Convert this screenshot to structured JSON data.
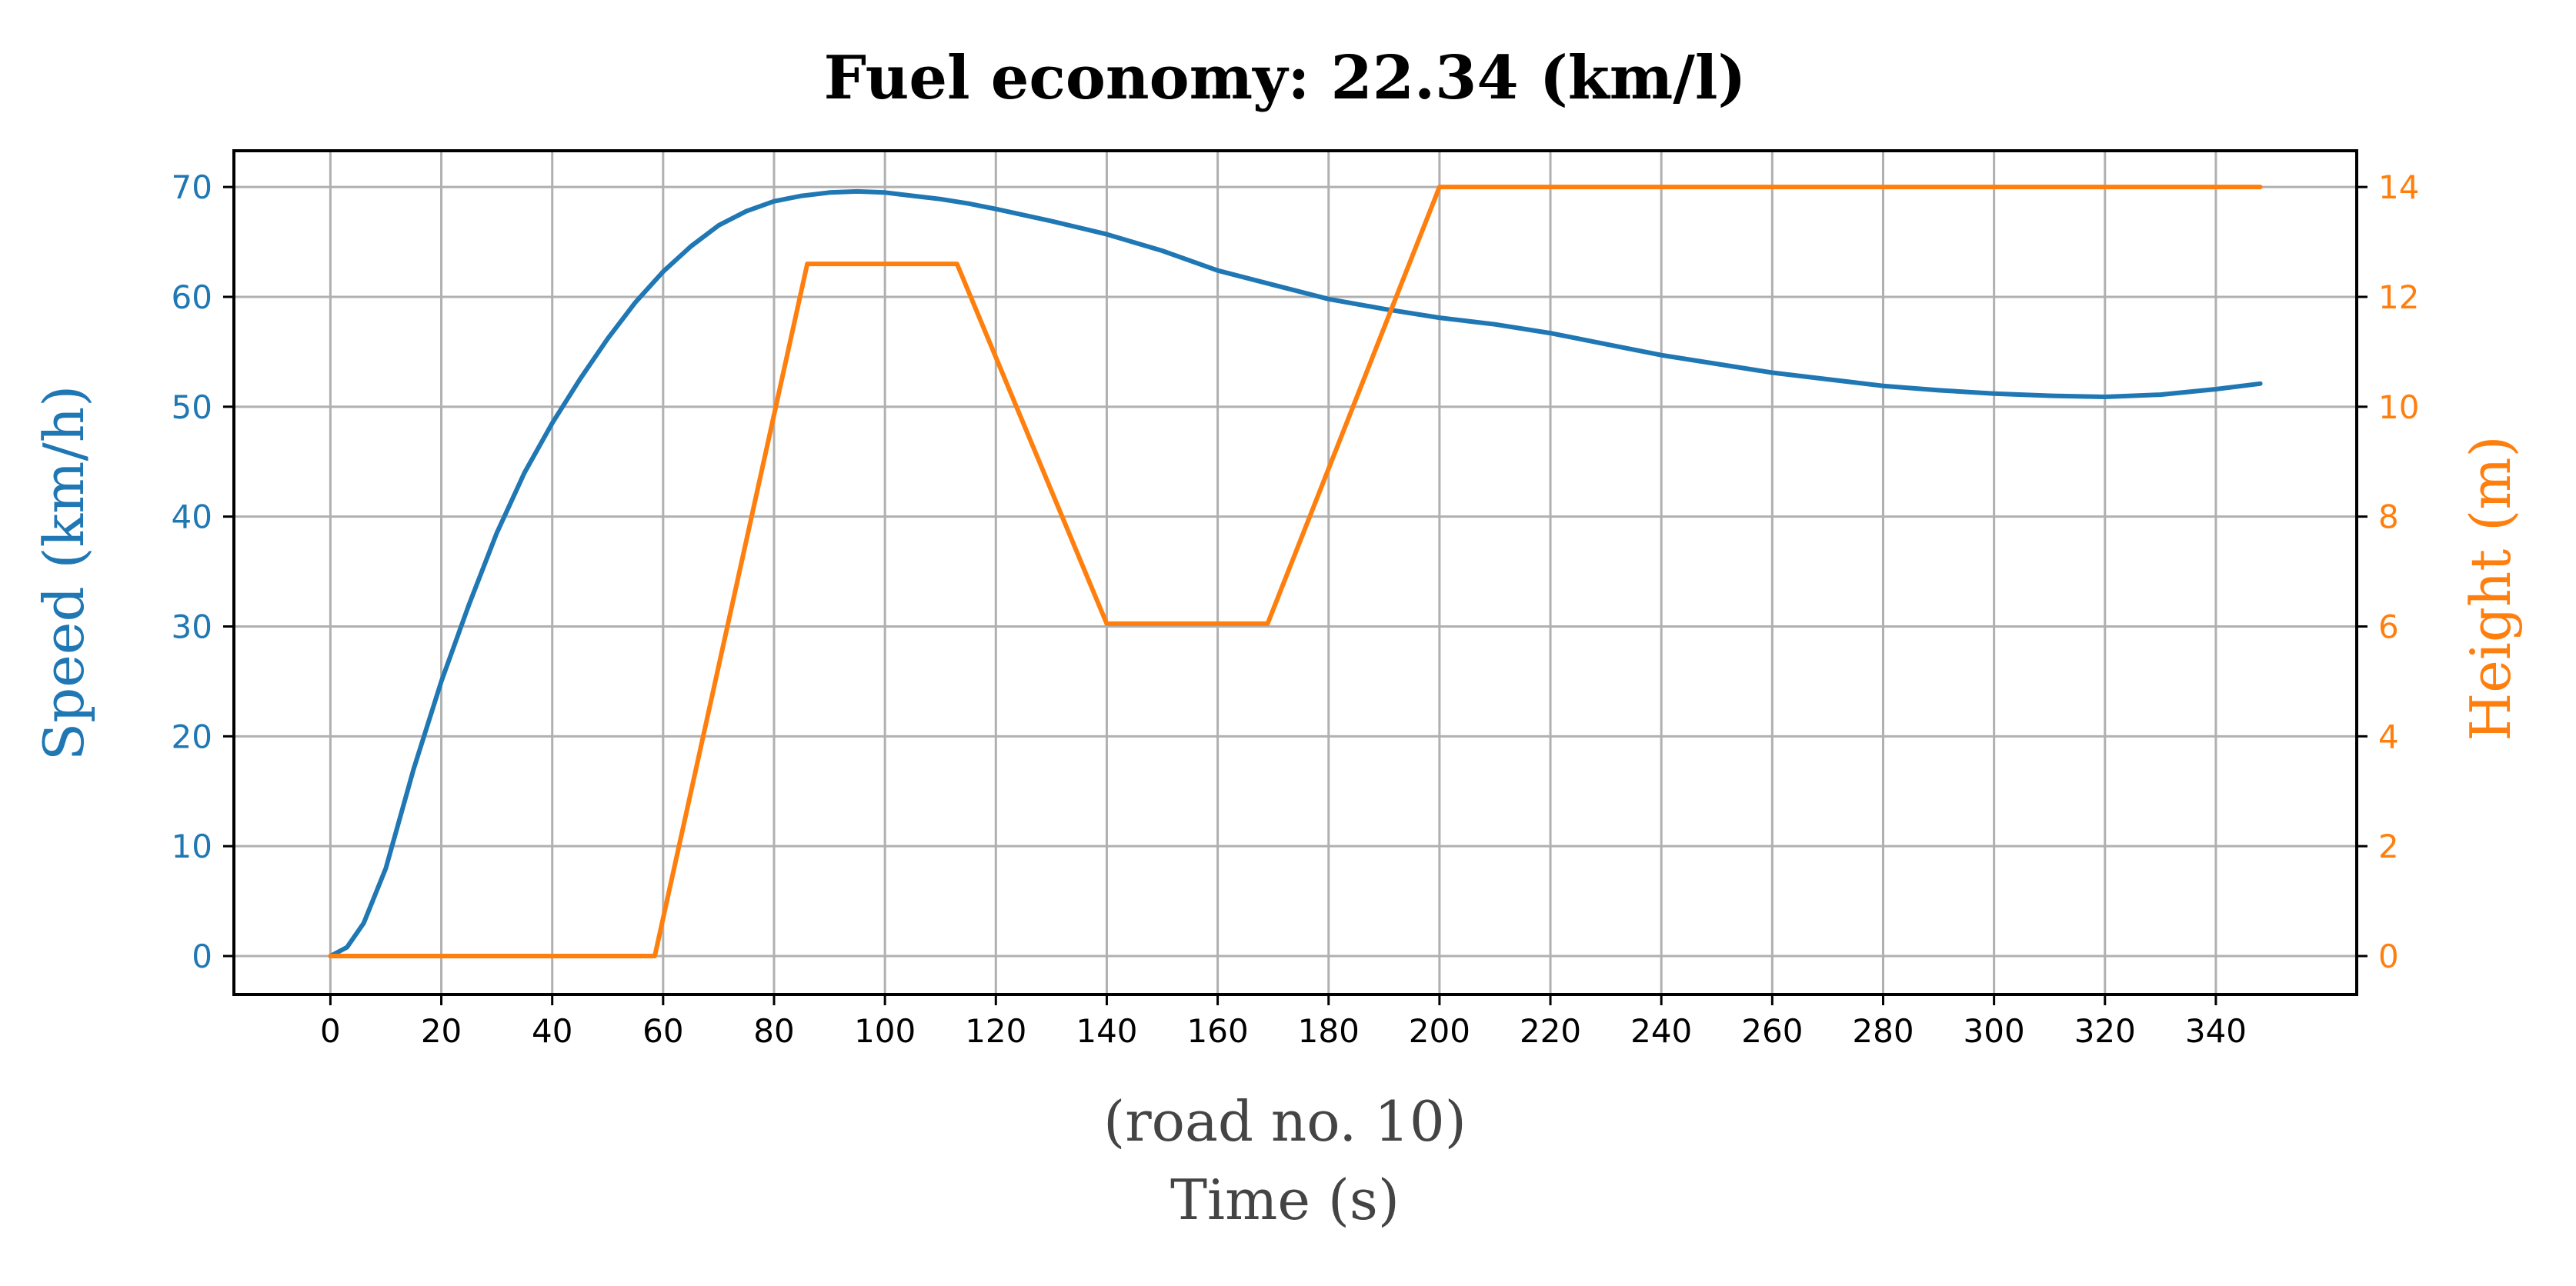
{
  "chart_data": {
    "type": "line",
    "title": "Fuel economy: 22.34 (km/l)",
    "xlabel_line1": "(road no. 10)",
    "xlabel_line2": "Time (s)",
    "ylabel_left": "Speed (km/h)",
    "ylabel_right": "Height (m)",
    "xlim": [
      -17.4,
      365.4
    ],
    "ylim_left": [
      -3.5,
      73.3
    ],
    "ylim_right": [
      -0.7,
      14.66
    ],
    "xticks": [
      0,
      20,
      40,
      60,
      80,
      100,
      120,
      140,
      160,
      180,
      200,
      220,
      240,
      260,
      280,
      300,
      320,
      340
    ],
    "yticks_left": [
      0,
      10,
      20,
      30,
      40,
      50,
      60,
      70
    ],
    "yticks_right": [
      0,
      2,
      4,
      6,
      8,
      10,
      12,
      14
    ],
    "grid": true,
    "series": [
      {
        "name": "Speed (km/h)",
        "axis": "left",
        "color": "#1f77b4",
        "x": [
          0,
          3,
          6,
          10,
          15,
          20,
          25,
          30,
          35,
          40,
          45,
          50,
          55,
          60,
          65,
          70,
          75,
          80,
          85,
          90,
          95,
          100,
          105,
          110,
          115,
          120,
          130,
          140,
          150,
          160,
          170,
          180,
          190,
          200,
          210,
          220,
          230,
          240,
          250,
          260,
          270,
          280,
          290,
          300,
          310,
          320,
          330,
          340,
          348
        ],
        "values": [
          0,
          0.8,
          3,
          8,
          17,
          25,
          32,
          38.5,
          44,
          48.5,
          52.5,
          56.2,
          59.5,
          62.3,
          64.6,
          66.5,
          67.8,
          68.7,
          69.2,
          69.5,
          69.6,
          69.5,
          69.2,
          68.9,
          68.5,
          68.0,
          66.9,
          65.7,
          64.2,
          62.4,
          61.1,
          59.8,
          58.9,
          58.1,
          57.5,
          56.7,
          55.7,
          54.7,
          53.9,
          53.1,
          52.5,
          51.9,
          51.5,
          51.2,
          51.0,
          50.9,
          51.1,
          51.6,
          52.1
        ]
      },
      {
        "name": "Height (m)",
        "axis": "right",
        "color": "#ff7f0e",
        "x": [
          0,
          58.5,
          86,
          113,
          140,
          169,
          200,
          348
        ],
        "values": [
          0,
          0,
          12.6,
          12.6,
          6.05,
          6.05,
          14.0,
          14.0
        ]
      }
    ]
  },
  "colors": {
    "left_axis": "#1f77b4",
    "right_axis": "#ff7f0e",
    "text_dark": "#000000",
    "xlabel_text": "#444444"
  }
}
